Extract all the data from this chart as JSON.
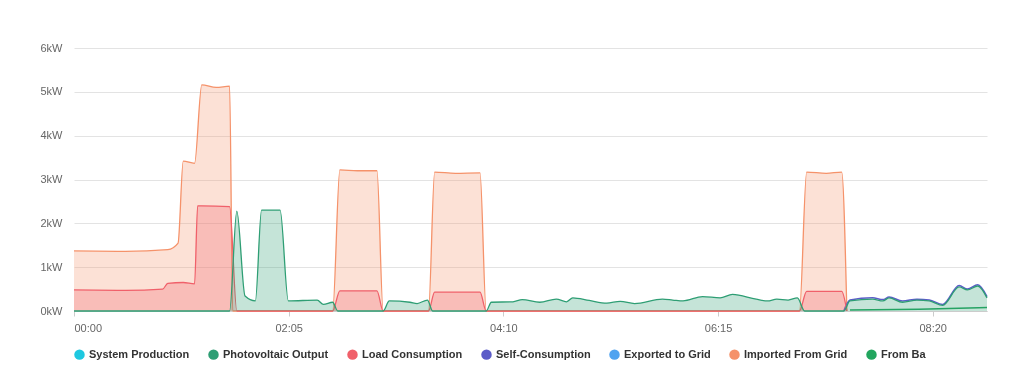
{
  "chart_data": {
    "type": "area",
    "xlim": [
      0,
      8.86
    ],
    "xticks": [
      {
        "value": 0,
        "label": "00:00"
      },
      {
        "value": 2.0833,
        "label": "02:05"
      },
      {
        "value": 4.1667,
        "label": "04:10"
      },
      {
        "value": 6.25,
        "label": "06:15"
      },
      {
        "value": 8.3333,
        "label": "08:20"
      }
    ],
    "ylim": [
      0,
      6
    ],
    "yticks": [
      {
        "value": 0,
        "label": "0kW"
      },
      {
        "value": 1,
        "label": "1kW"
      },
      {
        "value": 2,
        "label": "2kW"
      },
      {
        "value": 3,
        "label": "3kW"
      },
      {
        "value": 4,
        "label": "4kW"
      },
      {
        "value": 5,
        "label": "5kW"
      },
      {
        "value": 6,
        "label": "6kW"
      }
    ],
    "grid": "y",
    "legend": "bottom",
    "marker": "none",
    "series": [
      {
        "name": "System Production",
        "color": "#1ec8e0"
      },
      {
        "name": "Photovoltaic Output",
        "color": "#2e9e74",
        "x": [
          0,
          1.51,
          1.58,
          1.66,
          1.76,
          1.82,
          2.0,
          2.08,
          2.36,
          2.42,
          2.51,
          2.56,
          3.0,
          3.06,
          3.26,
          3.33,
          3.43,
          3.48,
          4.0,
          4.05,
          4.26,
          4.35,
          4.52,
          4.68,
          4.78,
          4.84,
          5.0,
          5.17,
          5.3,
          5.44,
          5.71,
          5.81,
          5.91,
          6.1,
          6.27,
          6.39,
          6.62,
          6.73,
          6.82,
          6.93,
          7.02,
          7.09,
          7.47,
          7.53,
          7.75,
          7.85,
          7.91,
          8.04,
          8.18,
          8.3,
          8.43,
          8.59,
          8.67,
          8.77,
          8.86
        ],
        "values": [
          0,
          0,
          2.28,
          0.34,
          0.23,
          2.3,
          2.3,
          0.23,
          0.25,
          0.15,
          0.2,
          0,
          0,
          0.23,
          0.2,
          0.17,
          0.25,
          0,
          0,
          0.2,
          0.21,
          0.26,
          0.2,
          0.27,
          0.21,
          0.3,
          0.24,
          0.18,
          0.22,
          0.17,
          0.27,
          0.25,
          0.23,
          0.33,
          0.3,
          0.38,
          0.27,
          0.23,
          0.27,
          0.25,
          0.3,
          0,
          0,
          0.23,
          0.27,
          0.23,
          0.3,
          0.2,
          0.25,
          0.23,
          0.13,
          0.55,
          0.48,
          0.57,
          0.3
        ]
      },
      {
        "name": "Load Consumption",
        "color": "#f0606a",
        "x": [
          0,
          0.5,
          0.86,
          0.91,
          1.06,
          1.17,
          1.2,
          1.24,
          1.51,
          1.58,
          2.51,
          2.58,
          2.94,
          3.0,
          3.44,
          3.5,
          3.94,
          4.0,
          7.04,
          7.11,
          7.45,
          7.5
        ],
        "values": [
          0.48,
          0.47,
          0.5,
          0.63,
          0.65,
          0.62,
          2.4,
          2.4,
          2.38,
          0,
          0,
          0.46,
          0.46,
          0,
          0,
          0.43,
          0.43,
          0,
          0,
          0.45,
          0.45,
          0
        ]
      },
      {
        "name": "Self-Consumption",
        "color": "#5b5bc8",
        "type": "line",
        "x": [
          7.47,
          7.53,
          7.75,
          7.85,
          7.91,
          8.04,
          8.18,
          8.3,
          8.43,
          8.59,
          8.67,
          8.77,
          8.86
        ],
        "values": [
          0,
          0.25,
          0.3,
          0.26,
          0.32,
          0.23,
          0.27,
          0.25,
          0.15,
          0.58,
          0.5,
          0.6,
          0.33
        ]
      },
      {
        "name": "Exported to Grid",
        "color": "#4fa3f0"
      },
      {
        "name": "Imported From Grid",
        "color": "#f5926a",
        "x": [
          0,
          0.5,
          0.91,
          1.01,
          1.06,
          1.17,
          1.24,
          1.38,
          1.51,
          1.54,
          2.51,
          2.58,
          2.75,
          2.94,
          3.0,
          3.44,
          3.5,
          3.7,
          3.94,
          4.0,
          7.04,
          7.11,
          7.3,
          7.45,
          7.5
        ],
        "values": [
          1.37,
          1.36,
          1.4,
          1.55,
          3.42,
          3.37,
          5.16,
          5.1,
          5.13,
          0,
          0,
          3.22,
          3.2,
          3.2,
          0,
          0,
          3.17,
          3.14,
          3.15,
          0,
          0,
          3.17,
          3.14,
          3.17,
          0
        ]
      },
      {
        "name": "From Ba",
        "color": "#22a55e",
        "type": "line",
        "x": [
          7.53,
          8.2,
          8.86
        ],
        "values": [
          0.02,
          0.04,
          0.08
        ]
      }
    ]
  }
}
